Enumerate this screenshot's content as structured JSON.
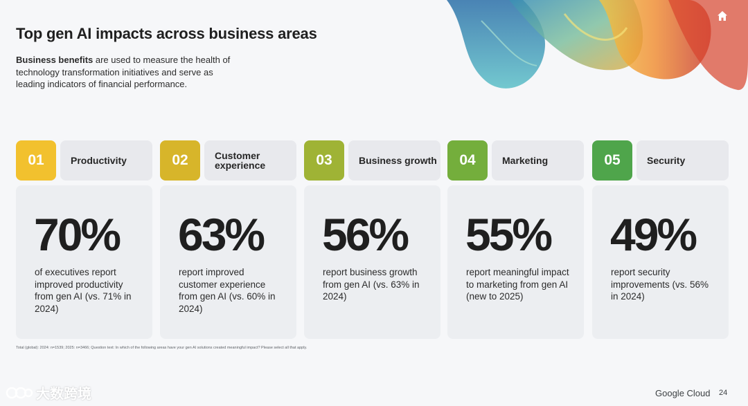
{
  "header": {
    "title": "Top gen AI impacts across business areas",
    "intro_bold": "Business benefits",
    "intro_rest": " are used to measure the health of technology transformation initiatives and serve as leading indicators of financial performance."
  },
  "areas": [
    {
      "number": "01",
      "label": "Productivity",
      "percent": "70%",
      "description": "of executives report improved productivity from gen AI (vs. 71% in 2024)",
      "color": "#f2c12e"
    },
    {
      "number": "02",
      "label": "Customer experience",
      "percent": "63%",
      "description": "report improved customer experience from gen AI (vs. 60% in 2024)",
      "color": "#d7b52a"
    },
    {
      "number": "03",
      "label": "Business growth",
      "percent": "56%",
      "description": "report business growth from gen AI (vs. 63% in 2024)",
      "color": "#9fb335"
    },
    {
      "number": "04",
      "label": "Marketing",
      "percent": "55%",
      "description": "report meaningful impact to marketing from gen AI (new to 2025)",
      "color": "#74ae3c"
    },
    {
      "number": "05",
      "label": "Security",
      "percent": "49%",
      "description": "report security improvements (vs. 56% in 2024)",
      "color": "#4fa54b"
    }
  ],
  "footnote": "Total (global): 2024: n=1539; 2025: n=3466; Question text: In which of the following areas have your gen AI solutions created meaningful impact? Please select all that apply.",
  "footer": {
    "brand": "Google Cloud",
    "page_number": "24",
    "watermark_text": "大数跨境"
  }
}
